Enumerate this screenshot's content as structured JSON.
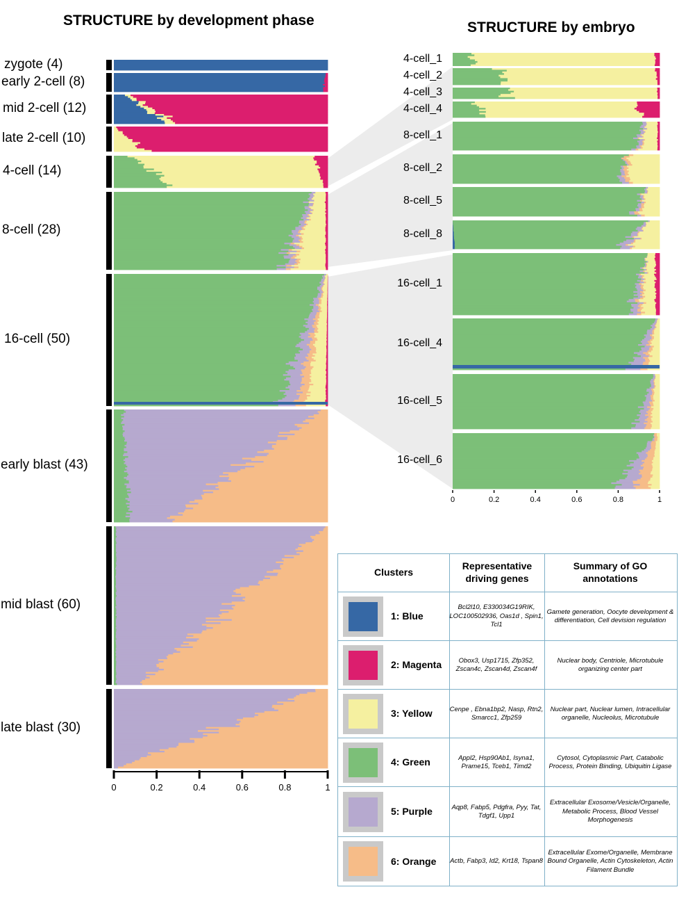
{
  "titles": {
    "left": "STRUCTURE by development phase",
    "right": "STRUCTURE by embryo"
  },
  "colors": {
    "blue": "#3668a5",
    "magenta": "#dc1e6e",
    "yellow": "#f5f0a0",
    "green": "#7cbf78",
    "purple": "#b6a9cf",
    "orange": "#f6bc88",
    "black": "#000000",
    "gridline": "#ffffff",
    "wedge": "#ececec",
    "legend_border": "#7fb0c8",
    "swatch_frame": "#c9c9c9"
  },
  "chart_data": [
    {
      "type": "bar",
      "orientation": "horizontal-stacked",
      "title": "STRUCTURE by development phase",
      "xlim": [
        0,
        1
      ],
      "xticks": [
        "0",
        "0.2",
        "0.4",
        "0.6",
        "0.8",
        "1"
      ],
      "series_order": [
        "blue",
        "magenta",
        "yellow",
        "green",
        "purple",
        "orange"
      ],
      "groups": [
        {
          "label": "zygote (4)",
          "n": 4,
          "start": {
            "blue": 1.0
          },
          "end": {
            "blue": 1.0
          }
        },
        {
          "label": "early 2-cell (8)",
          "n": 8,
          "start": {
            "blue": 0.99,
            "magenta": 0.01
          },
          "end": {
            "blue": 0.98,
            "magenta": 0.02
          }
        },
        {
          "label": "mid 2-cell (12)",
          "n": 12,
          "start": {
            "yellow": 0.02,
            "blue": 0.05,
            "magenta": 0.93
          },
          "end": {
            "yellow": 0.05,
            "blue": 0.24,
            "magenta": 0.71
          }
        },
        {
          "label": "late 2-cell (10)",
          "n": 10,
          "start": {
            "yellow": 0.01,
            "magenta": 0.99
          },
          "end": {
            "yellow": 0.15,
            "magenta": 0.85
          }
        },
        {
          "label": "4-cell (14)",
          "n": 14,
          "start": {
            "green": 0.08,
            "yellow": 0.86,
            "magenta": 0.06
          },
          "end": {
            "green": 0.27,
            "yellow": 0.71,
            "magenta": 0.02
          }
        },
        {
          "label": "8-cell (28)",
          "n": 28,
          "start": {
            "green": 0.92,
            "yellow": 0.05,
            "purple": 0.02,
            "magenta": 0.01
          },
          "end": {
            "green": 0.78,
            "yellow": 0.15,
            "purple": 0.04,
            "orange": 0.02,
            "magenta": 0.01
          }
        },
        {
          "label": "16-cell (50)",
          "n": 50,
          "start": {
            "green": 0.98,
            "yellow": 0.01,
            "purple": 0.01
          },
          "end": {
            "green": 0.77,
            "yellow": 0.09,
            "purple": 0.08,
            "orange": 0.05,
            "magenta": 0.01
          }
        },
        {
          "label": "early blast (43)",
          "n": 43,
          "start": {
            "green": 0.04,
            "purple": 0.93,
            "orange": 0.03
          },
          "end": {
            "green": 0.07,
            "purple": 0.18,
            "orange": 0.75
          }
        },
        {
          "label": "mid blast (60)",
          "n": 60,
          "start": {
            "green": 0.01,
            "purple": 0.98,
            "orange": 0.01
          },
          "end": {
            "green": 0.01,
            "purple": 0.1,
            "orange": 0.89
          }
        },
        {
          "label": "late blast (30)",
          "n": 30,
          "start": {
            "purple": 0.95,
            "orange": 0.05
          },
          "end": {
            "purple": 0.02,
            "orange": 0.98
          }
        }
      ]
    },
    {
      "type": "bar",
      "orientation": "horizontal-stacked",
      "title": "STRUCTURE by embryo",
      "xlim": [
        0,
        1
      ],
      "xticks": [
        "0",
        "0.2",
        "0.4",
        "0.6",
        "0.8",
        "1"
      ],
      "series_order": [
        "blue",
        "magenta",
        "yellow",
        "green",
        "purple",
        "orange"
      ],
      "groups": [
        {
          "label": "4-cell_1",
          "start": {
            "green": 0.09,
            "yellow": 0.89,
            "magenta": 0.02
          },
          "end": {
            "green": 0.1,
            "yellow": 0.88,
            "magenta": 0.02
          }
        },
        {
          "label": "4-cell_2",
          "start": {
            "green": 0.23,
            "yellow": 0.75,
            "magenta": 0.02
          },
          "end": {
            "green": 0.25,
            "yellow": 0.74,
            "magenta": 0.01
          }
        },
        {
          "label": "4-cell_3",
          "start": {
            "green": 0.27,
            "yellow": 0.72,
            "magenta": 0.01
          },
          "end": {
            "green": 0.27,
            "yellow": 0.72,
            "magenta": 0.01
          }
        },
        {
          "label": "4-cell_4",
          "start": {
            "green": 0.1,
            "yellow": 0.78,
            "magenta": 0.12
          },
          "end": {
            "green": 0.17,
            "yellow": 0.76,
            "magenta": 0.07
          }
        },
        {
          "label": "8-cell_1",
          "start": {
            "green": 0.91,
            "yellow": 0.06,
            "purple": 0.02,
            "magenta": 0.01
          },
          "end": {
            "green": 0.88,
            "yellow": 0.08,
            "purple": 0.02,
            "orange": 0.01,
            "magenta": 0.01
          }
        },
        {
          "label": "8-cell_2",
          "start": {
            "green": 0.84,
            "yellow": 0.14,
            "orange": 0.02
          },
          "end": {
            "green": 0.8,
            "yellow": 0.15,
            "purple": 0.03,
            "orange": 0.02
          }
        },
        {
          "label": "8-cell_5",
          "start": {
            "green": 0.93,
            "yellow": 0.06,
            "purple": 0.01
          },
          "end": {
            "green": 0.87,
            "yellow": 0.09,
            "purple": 0.02,
            "orange": 0.02
          }
        },
        {
          "label": "8-cell_8",
          "start": {
            "green": 0.93,
            "yellow": 0.06,
            "purple": 0.01
          },
          "end": {
            "green": 0.8,
            "yellow": 0.13,
            "purple": 0.05,
            "orange": 0.01,
            "blue": 0.01
          }
        },
        {
          "label": "16-cell_1",
          "start": {
            "green": 0.94,
            "yellow": 0.04,
            "magenta": 0.02
          },
          "end": {
            "green": 0.85,
            "yellow": 0.07,
            "purple": 0.04,
            "orange": 0.02,
            "magenta": 0.02
          }
        },
        {
          "label": "16-cell_4",
          "start": {
            "green": 0.98,
            "yellow": 0.01,
            "purple": 0.01
          },
          "end": {
            "green": 0.85,
            "yellow": 0.06,
            "purple": 0.06,
            "orange": 0.03
          }
        },
        {
          "label": "16-cell_5",
          "start": {
            "green": 0.97,
            "yellow": 0.02,
            "purple": 0.01
          },
          "end": {
            "green": 0.88,
            "yellow": 0.04,
            "purple": 0.05,
            "orange": 0.03
          }
        },
        {
          "label": "16-cell_6",
          "start": {
            "green": 0.98,
            "yellow": 0.01,
            "orange": 0.01
          },
          "end": {
            "green": 0.78,
            "yellow": 0.05,
            "purple": 0.1,
            "orange": 0.07
          }
        }
      ]
    }
  ],
  "legend": {
    "headers": {
      "clusters": "Clusters",
      "genes": "Representative driving genes",
      "go": "Summary of GO annotations"
    },
    "rows": [
      {
        "name": "1: Blue",
        "color": "#3668a5",
        "genes": "Bcl2l10, E330034G19RIK, LOC100502936, Oas1d , Spin1, Tcl1",
        "go": "Gamete generation, Oocyte development & differentiation, Cell devision regulation"
      },
      {
        "name": "2: Magenta",
        "color": "#dc1e6e",
        "genes": "Obox3, Usp1715, Zfp352, Zscan4c, Zscan4d, Zscan4f",
        "go": "Nuclear body, Centriole, Microtubule organizing center part"
      },
      {
        "name": "3: Yellow",
        "color": "#f5f0a0",
        "genes": "Cenpe , Ebna1bp2, Nasp, Rtn2, Smarcc1, Zfp259",
        "go": "Nuclear part, Nuclear lumen, Intracellular organelle, Nucleolus, Microtubule"
      },
      {
        "name": "4: Green",
        "color": "#7cbf78",
        "genes": "Appl2, Hsp90Ab1, Isyna1, Prame15, Tceb1, Timd2",
        "go": "Cytosol, Cytoplasmic Part, Catabolic Process, Protein Binding, Ubiquitin Ligase"
      },
      {
        "name": "5: Purple",
        "color": "#b6a9cf",
        "genes": "Aqp8, Fabp5, Pdgfra, Pyy, Tat, Tdgf1, Upp1",
        "go": "Extracellular Exosome/Vesicle/Organelle, Metabolic Process, Blood Vessel Morphogenesis"
      },
      {
        "name": "6: Orange",
        "color": "#f6bc88",
        "genes": "Actb, Fabp3, Id2, Krt18, Tspan8",
        "go": "Extracellular Exome/Organelle, Membrane Bound Organelle, Actin Cytoskeleton, Actin Filament Bundle"
      }
    ]
  }
}
